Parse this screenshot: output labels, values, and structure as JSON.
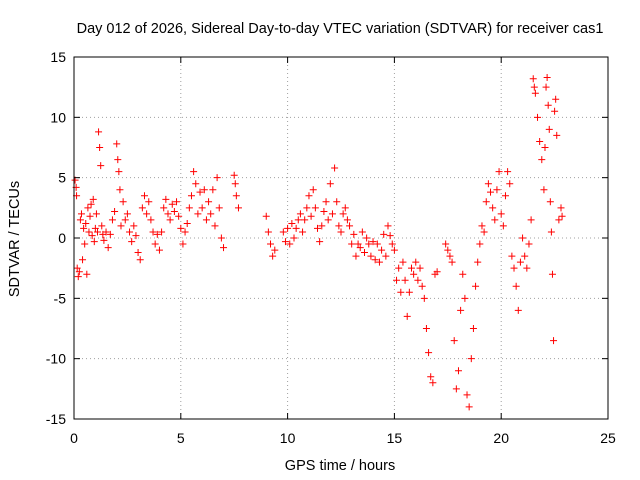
{
  "chart_data": {
    "type": "scatter",
    "title": "Day 012 of 2026, Sidereal Day-to-day VTEC variation (SDTVAR) for receiver cas1",
    "xlabel": "GPS time / hours",
    "ylabel": "SDTVAR / TECUs",
    "xlim": [
      0,
      25
    ],
    "ylim": [
      -15,
      15
    ],
    "xticks": [
      0,
      5,
      10,
      15,
      20,
      25
    ],
    "yticks": [
      -15,
      -10,
      -5,
      0,
      5,
      10,
      15
    ],
    "xtick_labels": [
      "0",
      "5",
      "10",
      "15",
      "20",
      "25"
    ],
    "ytick_labels": [
      "-15",
      "-10",
      "-5",
      "0",
      "5",
      "10",
      "15"
    ],
    "grid": true,
    "marker": "+",
    "series": [
      {
        "name": "SDTVAR",
        "color": "#ff0000",
        "points": [
          [
            0.05,
            4.8
          ],
          [
            0.1,
            4.2
          ],
          [
            0.12,
            3.5
          ],
          [
            0.15,
            -2.5
          ],
          [
            0.2,
            -3.2
          ],
          [
            0.25,
            -2.8
          ],
          [
            0.3,
            1.5
          ],
          [
            0.35,
            2.0
          ],
          [
            0.4,
            -1.8
          ],
          [
            0.45,
            0.8
          ],
          [
            0.5,
            -0.5
          ],
          [
            0.55,
            1.2
          ],
          [
            0.6,
            -3.0
          ],
          [
            0.65,
            2.5
          ],
          [
            0.7,
            0.5
          ],
          [
            0.75,
            1.8
          ],
          [
            0.8,
            2.8
          ],
          [
            0.85,
            0.2
          ],
          [
            0.9,
            3.2
          ],
          [
            0.95,
            -0.3
          ],
          [
            1.0,
            0.8
          ],
          [
            1.05,
            2.0
          ],
          [
            1.1,
            0.5
          ],
          [
            1.15,
            8.8
          ],
          [
            1.2,
            7.5
          ],
          [
            1.25,
            6.0
          ],
          [
            1.3,
            1.0
          ],
          [
            1.35,
            0.3
          ],
          [
            1.4,
            -0.2
          ],
          [
            1.5,
            0.5
          ],
          [
            1.6,
            -0.8
          ],
          [
            1.7,
            0.3
          ],
          [
            1.8,
            1.5
          ],
          [
            1.9,
            2.2
          ],
          [
            2.0,
            7.8
          ],
          [
            2.05,
            6.5
          ],
          [
            2.1,
            5.5
          ],
          [
            2.15,
            4.0
          ],
          [
            2.2,
            1.0
          ],
          [
            2.3,
            3.0
          ],
          [
            2.4,
            1.5
          ],
          [
            2.5,
            2.0
          ],
          [
            2.6,
            0.5
          ],
          [
            2.7,
            -0.3
          ],
          [
            2.8,
            1.0
          ],
          [
            2.9,
            0.2
          ],
          [
            3.0,
            -1.2
          ],
          [
            3.1,
            -1.8
          ],
          [
            3.2,
            2.5
          ],
          [
            3.3,
            3.5
          ],
          [
            3.4,
            2.0
          ],
          [
            3.5,
            3.0
          ],
          [
            3.6,
            1.5
          ],
          [
            3.7,
            0.5
          ],
          [
            3.8,
            -0.5
          ],
          [
            3.9,
            0.3
          ],
          [
            4.0,
            -1.0
          ],
          [
            4.1,
            0.5
          ],
          [
            4.2,
            2.5
          ],
          [
            4.3,
            3.2
          ],
          [
            4.4,
            2.0
          ],
          [
            4.5,
            1.5
          ],
          [
            4.6,
            2.8
          ],
          [
            4.7,
            2.2
          ],
          [
            4.8,
            3.0
          ],
          [
            4.9,
            1.8
          ],
          [
            5.0,
            0.8
          ],
          [
            5.1,
            -0.5
          ],
          [
            5.2,
            0.5
          ],
          [
            5.3,
            1.2
          ],
          [
            5.4,
            2.5
          ],
          [
            5.5,
            3.5
          ],
          [
            5.6,
            5.5
          ],
          [
            5.7,
            4.5
          ],
          [
            5.8,
            2.0
          ],
          [
            5.9,
            3.8
          ],
          [
            6.0,
            2.5
          ],
          [
            6.1,
            4.0
          ],
          [
            6.2,
            1.5
          ],
          [
            6.3,
            3.0
          ],
          [
            6.4,
            2.0
          ],
          [
            6.5,
            4.0
          ],
          [
            6.6,
            1.0
          ],
          [
            6.7,
            5.0
          ],
          [
            6.8,
            2.5
          ],
          [
            6.9,
            0.0
          ],
          [
            7.0,
            -0.8
          ],
          [
            7.5,
            5.2
          ],
          [
            7.55,
            4.5
          ],
          [
            7.6,
            3.5
          ],
          [
            7.7,
            2.5
          ],
          [
            9.0,
            1.8
          ],
          [
            9.1,
            0.5
          ],
          [
            9.2,
            -0.5
          ],
          [
            9.3,
            -1.5
          ],
          [
            9.4,
            -1.0
          ],
          [
            9.8,
            0.5
          ],
          [
            9.9,
            -0.3
          ],
          [
            10.0,
            0.8
          ],
          [
            10.1,
            -0.5
          ],
          [
            10.2,
            1.2
          ],
          [
            10.3,
            0.0
          ],
          [
            10.4,
            0.8
          ],
          [
            10.5,
            1.5
          ],
          [
            10.6,
            2.0
          ],
          [
            10.7,
            0.5
          ],
          [
            10.8,
            1.5
          ],
          [
            10.9,
            2.5
          ],
          [
            11.0,
            3.5
          ],
          [
            11.1,
            1.8
          ],
          [
            11.2,
            4.0
          ],
          [
            11.3,
            2.5
          ],
          [
            11.4,
            0.8
          ],
          [
            11.5,
            -0.3
          ],
          [
            11.6,
            1.0
          ],
          [
            11.7,
            2.2
          ],
          [
            11.8,
            3.0
          ],
          [
            11.9,
            1.5
          ],
          [
            12.0,
            4.5
          ],
          [
            12.1,
            2.0
          ],
          [
            12.2,
            5.8
          ],
          [
            12.3,
            3.0
          ],
          [
            12.4,
            1.0
          ],
          [
            12.5,
            0.5
          ],
          [
            12.6,
            2.0
          ],
          [
            12.7,
            2.5
          ],
          [
            12.8,
            1.5
          ],
          [
            12.9,
            1.0
          ],
          [
            13.0,
            -0.5
          ],
          [
            13.1,
            0.3
          ],
          [
            13.2,
            -1.5
          ],
          [
            13.3,
            -0.5
          ],
          [
            13.4,
            -0.8
          ],
          [
            13.5,
            0.5
          ],
          [
            13.6,
            -1.2
          ],
          [
            13.7,
            0.0
          ],
          [
            13.8,
            -0.5
          ],
          [
            13.9,
            -1.5
          ],
          [
            14.0,
            -0.3
          ],
          [
            14.1,
            -1.8
          ],
          [
            14.2,
            -0.5
          ],
          [
            14.3,
            -2.0
          ],
          [
            14.4,
            -1.0
          ],
          [
            14.5,
            0.3
          ],
          [
            14.6,
            -1.5
          ],
          [
            14.7,
            1.0
          ],
          [
            14.8,
            0.2
          ],
          [
            14.9,
            -0.5
          ],
          [
            15.0,
            -1.0
          ],
          [
            15.1,
            -3.5
          ],
          [
            15.2,
            -2.5
          ],
          [
            15.3,
            -4.5
          ],
          [
            15.4,
            -2.0
          ],
          [
            15.5,
            -3.5
          ],
          [
            15.6,
            -6.5
          ],
          [
            15.7,
            -4.5
          ],
          [
            15.8,
            -2.5
          ],
          [
            15.9,
            -3.0
          ],
          [
            16.0,
            -2.0
          ],
          [
            16.1,
            -3.5
          ],
          [
            16.2,
            -2.5
          ],
          [
            16.3,
            -4.0
          ],
          [
            16.4,
            -5.0
          ],
          [
            16.5,
            -7.5
          ],
          [
            16.6,
            -9.5
          ],
          [
            16.7,
            -11.5
          ],
          [
            16.8,
            -12.0
          ],
          [
            16.9,
            -3.0
          ],
          [
            17.0,
            -2.8
          ],
          [
            17.4,
            -0.5
          ],
          [
            17.5,
            -1.0
          ],
          [
            17.6,
            -1.5
          ],
          [
            17.7,
            -2.0
          ],
          [
            17.8,
            -8.5
          ],
          [
            17.9,
            -12.5
          ],
          [
            18.0,
            -11.0
          ],
          [
            18.1,
            -6.0
          ],
          [
            18.2,
            -3.0
          ],
          [
            18.3,
            -5.0
          ],
          [
            18.4,
            -13.0
          ],
          [
            18.5,
            -14.0
          ],
          [
            18.6,
            -10.0
          ],
          [
            18.7,
            -7.5
          ],
          [
            18.8,
            -4.0
          ],
          [
            18.9,
            -2.0
          ],
          [
            19.0,
            -0.5
          ],
          [
            19.1,
            1.0
          ],
          [
            19.2,
            0.5
          ],
          [
            19.3,
            3.0
          ],
          [
            19.4,
            4.5
          ],
          [
            19.5,
            3.8
          ],
          [
            19.6,
            2.5
          ],
          [
            19.7,
            1.5
          ],
          [
            19.8,
            4.0
          ],
          [
            19.9,
            5.5
          ],
          [
            20.0,
            2.0
          ],
          [
            20.1,
            1.0
          ],
          [
            20.2,
            3.5
          ],
          [
            20.3,
            5.5
          ],
          [
            20.4,
            4.5
          ],
          [
            20.5,
            -1.5
          ],
          [
            20.6,
            -2.5
          ],
          [
            20.7,
            -4.0
          ],
          [
            20.8,
            -6.0
          ],
          [
            20.9,
            -2.0
          ],
          [
            21.0,
            0.0
          ],
          [
            21.1,
            -1.5
          ],
          [
            21.2,
            -2.5
          ],
          [
            21.3,
            -0.5
          ],
          [
            21.4,
            1.5
          ],
          [
            21.5,
            13.2
          ],
          [
            21.55,
            12.5
          ],
          [
            21.6,
            12.0
          ],
          [
            21.7,
            10.0
          ],
          [
            21.8,
            8.0
          ],
          [
            21.9,
            6.5
          ],
          [
            22.0,
            4.0
          ],
          [
            22.05,
            7.5
          ],
          [
            22.1,
            12.5
          ],
          [
            22.15,
            13.3
          ],
          [
            22.2,
            11.0
          ],
          [
            22.25,
            9.0
          ],
          [
            22.3,
            3.0
          ],
          [
            22.35,
            0.5
          ],
          [
            22.4,
            -3.0
          ],
          [
            22.45,
            -8.5
          ],
          [
            22.5,
            10.5
          ],
          [
            22.55,
            11.5
          ],
          [
            22.6,
            8.5
          ],
          [
            22.7,
            1.5
          ],
          [
            22.8,
            2.5
          ],
          [
            22.85,
            1.8
          ]
        ]
      }
    ]
  }
}
